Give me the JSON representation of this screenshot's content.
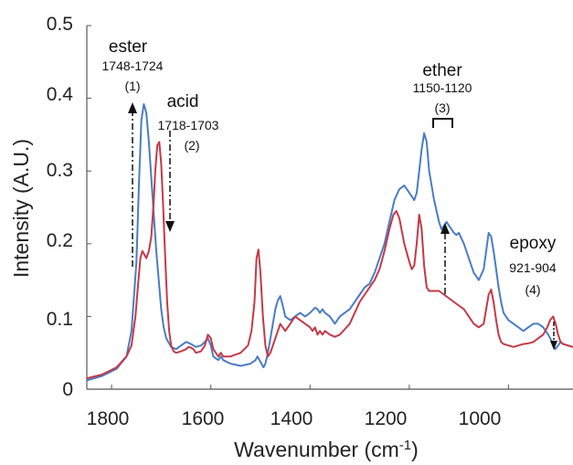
{
  "chart_data": {
    "type": "line",
    "xlabel": "Wavenumber (cm",
    "xlabel_sup": "-1",
    "xlabel_close": ")",
    "ylabel": "Intensity (A.U.)",
    "xlim": [
      1850,
      870
    ],
    "ylim": [
      0,
      0.5
    ],
    "x_reversed": true,
    "x_ticks": [
      1800,
      1600,
      1400,
      1200,
      1000
    ],
    "y_ticks": [
      0,
      0.1,
      0.2,
      0.3,
      0.4,
      0.5
    ],
    "x_tick_labels": [
      "1800",
      "1600",
      "1400",
      "1200",
      "1000"
    ],
    "y_tick_labels": [
      "0",
      "0.1",
      "0.2",
      "0.3",
      "0.4",
      "0.5"
    ],
    "grid": false,
    "series": [
      {
        "color": "#4a7cc4",
        "x": [
          1850,
          1820,
          1790,
          1770,
          1760,
          1750,
          1745,
          1740,
          1735,
          1730,
          1725,
          1720,
          1715,
          1710,
          1705,
          1700,
          1695,
          1690,
          1680,
          1670,
          1660,
          1650,
          1640,
          1630,
          1620,
          1612,
          1606,
          1600,
          1595,
          1585,
          1580,
          1575,
          1560,
          1540,
          1520,
          1510,
          1506,
          1502,
          1498,
          1494,
          1490,
          1485,
          1480,
          1475,
          1470,
          1465,
          1460,
          1455,
          1450,
          1440,
          1430,
          1420,
          1410,
          1400,
          1390,
          1385,
          1380,
          1375,
          1370,
          1360,
          1350,
          1340,
          1320,
          1300,
          1290,
          1280,
          1270,
          1260,
          1250,
          1240,
          1230,
          1220,
          1210,
          1200,
          1190,
          1185,
          1180,
          1175,
          1170,
          1165,
          1160,
          1150,
          1140,
          1135,
          1130,
          1125,
          1120,
          1110,
          1105,
          1100,
          1090,
          1080,
          1070,
          1060,
          1050,
          1045,
          1040,
          1035,
          1030,
          1025,
          1020,
          1015,
          1010,
          1000,
          990,
          980,
          970,
          960,
          950,
          940,
          930,
          920,
          912,
          906,
          900,
          895,
          890,
          880,
          870
        ],
        "y": [
          0.012,
          0.018,
          0.028,
          0.045,
          0.08,
          0.175,
          0.28,
          0.37,
          0.392,
          0.38,
          0.34,
          0.29,
          0.24,
          0.19,
          0.15,
          0.11,
          0.085,
          0.07,
          0.058,
          0.055,
          0.06,
          0.065,
          0.062,
          0.058,
          0.06,
          0.065,
          0.07,
          0.06,
          0.045,
          0.04,
          0.045,
          0.04,
          0.035,
          0.032,
          0.035,
          0.04,
          0.045,
          0.04,
          0.035,
          0.03,
          0.035,
          0.05,
          0.07,
          0.09,
          0.11,
          0.122,
          0.128,
          0.115,
          0.1,
          0.095,
          0.1,
          0.105,
          0.1,
          0.105,
          0.112,
          0.11,
          0.105,
          0.11,
          0.105,
          0.1,
          0.09,
          0.1,
          0.11,
          0.13,
          0.14,
          0.145,
          0.16,
          0.18,
          0.2,
          0.23,
          0.26,
          0.275,
          0.28,
          0.27,
          0.26,
          0.27,
          0.3,
          0.33,
          0.352,
          0.34,
          0.3,
          0.26,
          0.23,
          0.22,
          0.225,
          0.23,
          0.225,
          0.215,
          0.212,
          0.215,
          0.2,
          0.18,
          0.16,
          0.15,
          0.165,
          0.19,
          0.215,
          0.21,
          0.19,
          0.165,
          0.14,
          0.12,
          0.105,
          0.095,
          0.09,
          0.085,
          0.08,
          0.085,
          0.09,
          0.09,
          0.085,
          0.075,
          0.065,
          0.055,
          0.06,
          0.065,
          0.062,
          0.06,
          0.058
        ]
      },
      {
        "color": "#c23a47",
        "x": [
          1850,
          1820,
          1790,
          1770,
          1760,
          1752,
          1746,
          1742,
          1738,
          1734,
          1730,
          1725,
          1720,
          1715,
          1712,
          1708,
          1704,
          1700,
          1696,
          1692,
          1688,
          1684,
          1680,
          1675,
          1670,
          1660,
          1650,
          1645,
          1640,
          1635,
          1630,
          1620,
          1612,
          1606,
          1600,
          1595,
          1585,
          1580,
          1575,
          1560,
          1540,
          1525,
          1518,
          1512,
          1508,
          1504,
          1500,
          1495,
          1490,
          1485,
          1480,
          1475,
          1470,
          1465,
          1460,
          1455,
          1450,
          1440,
          1430,
          1420,
          1410,
          1400,
          1395,
          1390,
          1385,
          1380,
          1375,
          1370,
          1360,
          1350,
          1340,
          1320,
          1300,
          1290,
          1280,
          1270,
          1260,
          1250,
          1240,
          1232,
          1226,
          1220,
          1210,
          1200,
          1195,
          1190,
          1185,
          1180,
          1175,
          1170,
          1165,
          1160,
          1150,
          1140,
          1130,
          1120,
          1110,
          1100,
          1090,
          1080,
          1070,
          1060,
          1050,
          1045,
          1040,
          1035,
          1030,
          1025,
          1020,
          1015,
          1010,
          1000,
          990,
          980,
          970,
          960,
          950,
          940,
          930,
          922,
          916,
          910,
          905,
          900,
          895,
          890,
          880,
          870
        ],
        "y": [
          0.015,
          0.02,
          0.03,
          0.045,
          0.06,
          0.1,
          0.15,
          0.18,
          0.19,
          0.185,
          0.18,
          0.19,
          0.21,
          0.26,
          0.3,
          0.335,
          0.34,
          0.31,
          0.25,
          0.18,
          0.12,
          0.08,
          0.06,
          0.052,
          0.05,
          0.052,
          0.055,
          0.058,
          0.057,
          0.055,
          0.05,
          0.052,
          0.06,
          0.075,
          0.07,
          0.055,
          0.045,
          0.05,
          0.045,
          0.045,
          0.05,
          0.06,
          0.08,
          0.12,
          0.18,
          0.192,
          0.16,
          0.1,
          0.06,
          0.045,
          0.05,
          0.06,
          0.07,
          0.08,
          0.09,
          0.085,
          0.08,
          0.09,
          0.1,
          0.095,
          0.09,
          0.085,
          0.08,
          0.085,
          0.075,
          0.08,
          0.075,
          0.08,
          0.075,
          0.072,
          0.075,
          0.09,
          0.12,
          0.13,
          0.14,
          0.15,
          0.165,
          0.19,
          0.22,
          0.24,
          0.245,
          0.235,
          0.2,
          0.175,
          0.165,
          0.17,
          0.2,
          0.24,
          0.22,
          0.17,
          0.14,
          0.135,
          0.135,
          0.135,
          0.13,
          0.125,
          0.12,
          0.115,
          0.11,
          0.1,
          0.09,
          0.085,
          0.09,
          0.11,
          0.13,
          0.137,
          0.12,
          0.095,
          0.075,
          0.065,
          0.062,
          0.06,
          0.058,
          0.06,
          0.062,
          0.063,
          0.065,
          0.07,
          0.075,
          0.085,
          0.095,
          0.1,
          0.09,
          0.075,
          0.065,
          0.062,
          0.06,
          0.058
        ]
      }
    ],
    "annotations": [
      {
        "name": "ester",
        "range": "1748-1724",
        "number": "(1)"
      },
      {
        "name": "acid",
        "range": "1718-1703",
        "number": "(2)"
      },
      {
        "name": "ether",
        "range": "1150-1120",
        "number": "(3)"
      },
      {
        "name": "epoxy",
        "range": "921-904",
        "number": "(4)"
      }
    ]
  }
}
